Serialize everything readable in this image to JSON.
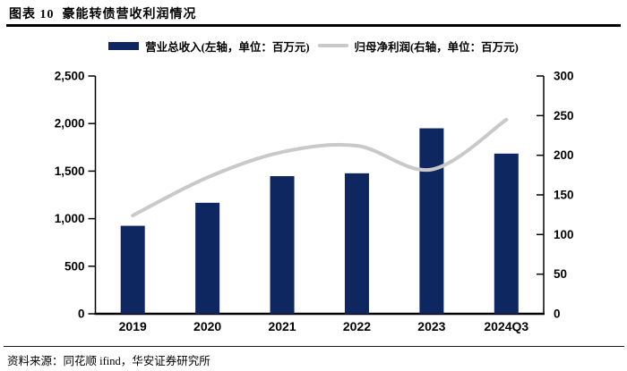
{
  "figure": {
    "title": "图表 10  豪能转债营收利润情况",
    "source": "资料来源：同花顺 ifind，华安证券研究所"
  },
  "legend": {
    "bar_label": "营业总收入(左轴，单位：百万元)",
    "line_label": "归母净利润(右轴，单位：百万元)"
  },
  "colors": {
    "bar": "#0f2760",
    "line": "#c9c9c9",
    "axis": "#000000",
    "text": "#000000"
  },
  "chart_data": {
    "type": "bar",
    "subtype": "bar+line combo",
    "title": "豪能转债营收利润情况",
    "categories": [
      "2019",
      "2020",
      "2021",
      "2022",
      "2023",
      "2024Q3"
    ],
    "series": [
      {
        "name": "营业总收入(左轴，单位：百万元)",
        "type": "bar",
        "axis": "left",
        "values": [
          925,
          1167,
          1447,
          1477,
          1950,
          1684
        ]
      },
      {
        "name": "归母净利润(右轴，单位：百万元)",
        "type": "line",
        "axis": "right",
        "values": [
          124,
          172,
          204,
          212,
          182,
          245
        ]
      }
    ],
    "left_axis": {
      "min": 0,
      "max": 2500,
      "step": 500,
      "ticks": [
        "0",
        "500",
        "1,000",
        "1,500",
        "2,000",
        "2,500"
      ]
    },
    "right_axis": {
      "min": 0,
      "max": 300,
      "step": 50,
      "ticks": [
        "0",
        "50",
        "100",
        "150",
        "200",
        "250",
        "300"
      ]
    },
    "grid": false,
    "legend_position": "top"
  }
}
